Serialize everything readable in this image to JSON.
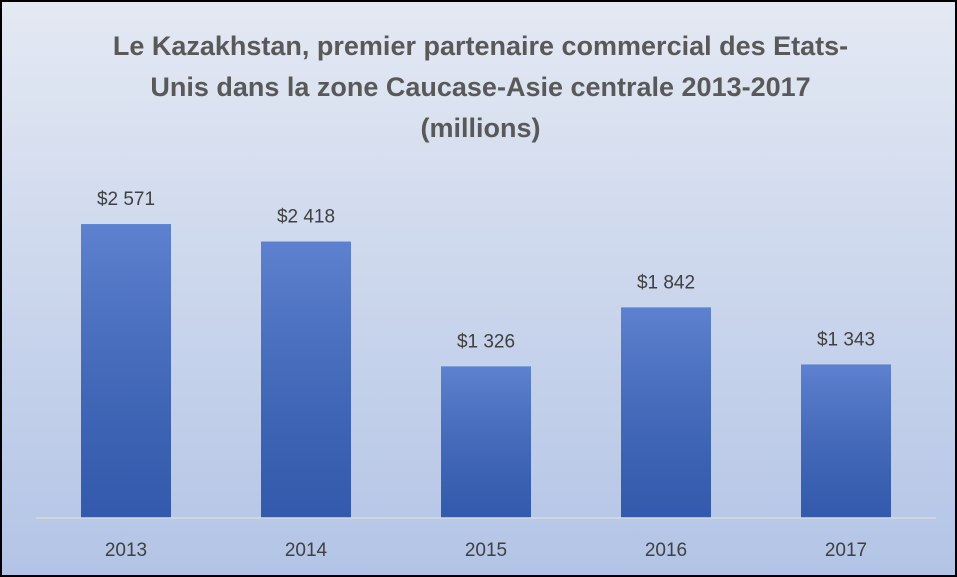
{
  "chart_data": {
    "type": "bar",
    "title": "Le Kazakhstan, premier partenaire commercial des Etats-Unis dans la zone Caucase-Asie centrale 2013-2017 (millions)",
    "categories": [
      "2013",
      "2014",
      "2015",
      "2016",
      "2017"
    ],
    "values": [
      2571,
      2418,
      1326,
      1842,
      1343
    ],
    "value_labels": [
      "$2 571",
      "$2 418",
      "$1 326",
      "$1 842",
      "$1 343"
    ],
    "ylim": [
      0,
      3000
    ],
    "color": "#3a66c4"
  }
}
